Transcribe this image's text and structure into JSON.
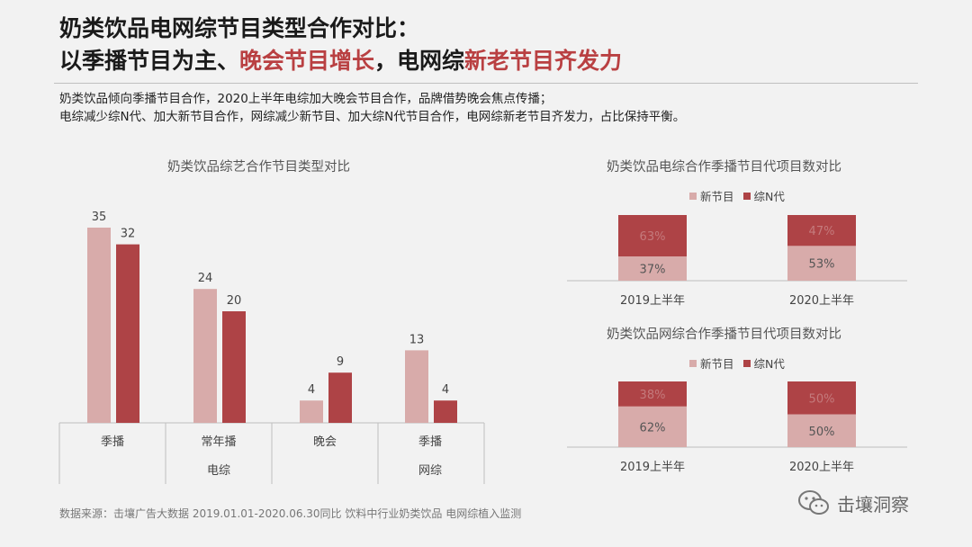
{
  "title": {
    "line1": "奶类饮品电网综节目类型合作对比：",
    "line2_part1": "以季播节目为主、",
    "line2_highlight1": "晚会节目增长",
    "line2_part2": "，电网综",
    "line2_highlight2": "新老节目齐发力"
  },
  "description": {
    "line1": "奶类饮品倾向季播节目合作，2020上半年电综加大晚会节目合作，品牌借势晚会焦点传播；",
    "line2": "电综减少综N代、加大新节目合作，网综减少新节目、加大综N代节目合作，电网综新老节目齐发力，占比保持平衡。"
  },
  "colors": {
    "light": "#d8abaa",
    "dark": "#ae4346",
    "axis": "#bfbfbf"
  },
  "chart_data": [
    {
      "type": "bar",
      "title": "奶类饮品综艺合作节目类型对比",
      "categories": [
        "季播",
        "常年播",
        "晚会",
        "季播"
      ],
      "groups": [
        {
          "label": "电综",
          "categories": [
            "季播",
            "常年播",
            "晚会"
          ]
        },
        {
          "label": "网综",
          "categories": [
            "季播"
          ]
        }
      ],
      "series": [
        {
          "values": [
            35,
            24,
            4,
            13
          ]
        },
        {
          "values": [
            32,
            20,
            9,
            4
          ]
        }
      ],
      "ylim": [
        0,
        40
      ]
    },
    {
      "type": "bar",
      "stacked": true,
      "percent": true,
      "title": "奶类饮品电综合作季播节目代项目数对比",
      "categories": [
        "2019上半年",
        "2020上半年"
      ],
      "series": [
        {
          "name": "新节目",
          "values": [
            37,
            53
          ],
          "labels": [
            "37%",
            "53%"
          ]
        },
        {
          "name": "综N代",
          "values": [
            63,
            47
          ],
          "labels": [
            "63%",
            "47%"
          ]
        }
      ]
    },
    {
      "type": "bar",
      "stacked": true,
      "percent": true,
      "title": "奶类饮品网综合作季播节目代项目数对比",
      "categories": [
        "2019上半年",
        "2020上半年"
      ],
      "series": [
        {
          "name": "新节目",
          "values": [
            62,
            50
          ],
          "labels": [
            "62%",
            "50%"
          ]
        },
        {
          "name": "综N代",
          "values": [
            38,
            50
          ],
          "labels": [
            "38%",
            "50%"
          ]
        }
      ]
    }
  ],
  "source": "数据来源：击壤广告大数据 2019.01.01-2020.06.30同比 饮料中行业奶类饮品 电网综植入监测",
  "watermark": {
    "text": "击壤洞察",
    "icon": "wechat-icon"
  }
}
